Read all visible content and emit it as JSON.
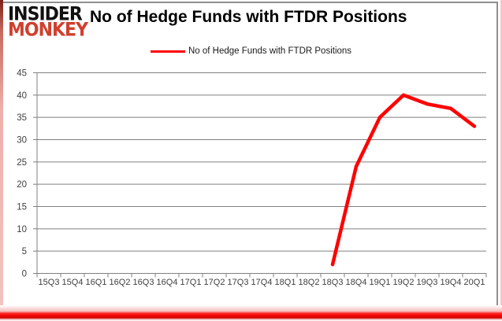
{
  "logo": {
    "line1": "INSIDER",
    "line2": "MONKEY",
    "color_top": "#111111",
    "color_bottom": "#d0402e"
  },
  "header": {
    "title": "No of Hedge Funds with FTDR Positions"
  },
  "legend": {
    "label": "No of Hedge Funds with FTDR Positions",
    "line_color": "#ff0000"
  },
  "chart_data": {
    "type": "line",
    "title": "No of Hedge Funds with FTDR Positions",
    "categories": [
      "15Q3",
      "15Q4",
      "16Q1",
      "16Q2",
      "16Q3",
      "16Q4",
      "17Q1",
      "17Q2",
      "17Q3",
      "17Q4",
      "18Q1",
      "18Q2",
      "18Q3",
      "18Q4",
      "19Q1",
      "19Q2",
      "19Q3",
      "19Q4",
      "20Q1"
    ],
    "series": [
      {
        "name": "No of Hedge Funds with FTDR Positions",
        "color": "#ff0000",
        "values": [
          null,
          null,
          null,
          null,
          null,
          null,
          null,
          null,
          null,
          null,
          null,
          null,
          2,
          24,
          35,
          40,
          38,
          37,
          33
        ]
      }
    ],
    "xlabel": "",
    "ylabel": "",
    "ylim": [
      0,
      45
    ],
    "yticks": [
      0,
      5,
      10,
      15,
      20,
      25,
      30,
      35,
      40,
      45
    ],
    "grid": "horizontal",
    "legend_position": "top"
  },
  "style": {
    "grid_color": "#808080",
    "axis_color": "#808080",
    "tick_label_color": "#3f3f3f",
    "background": "#ffffff",
    "accent_red": "#ff0000"
  }
}
